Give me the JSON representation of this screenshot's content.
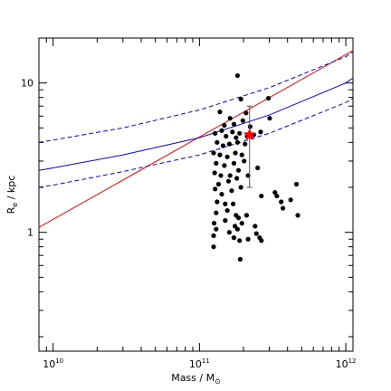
{
  "chart_data": {
    "type": "scatter",
    "xscale": "log",
    "yscale": "log",
    "xlim": [
      8000000000.0,
      1120000000000.0
    ],
    "ylim": [
      0.16,
      20
    ],
    "grid": false,
    "xlabel": {
      "main": "Mass / M",
      "sub": "⊙"
    },
    "ylabel": {
      "main": "R",
      "sub": "e",
      "tail": " / kpc"
    },
    "x_ticks": [
      {
        "value": 10000000000.0,
        "base": "10",
        "exp": "10"
      },
      {
        "value": 100000000000.0,
        "base": "10",
        "exp": "11"
      },
      {
        "value": 1000000000000.0,
        "base": "10",
        "exp": "12"
      }
    ],
    "y_ticks": [
      {
        "value": 1,
        "label": "1"
      },
      {
        "value": 10,
        "label": "10"
      }
    ],
    "points": [
      [
        182000000000.0,
        11.2
      ],
      [
        192000000000.0,
        7.8
      ],
      [
        296000000000.0,
        7.9
      ],
      [
        138000000000.0,
        6.4
      ],
      [
        162000000000.0,
        5.8
      ],
      [
        208000000000.0,
        6.3
      ],
      [
        198000000000.0,
        5.6
      ],
      [
        148000000000.0,
        5.2
      ],
      [
        172000000000.0,
        5.3
      ],
      [
        222000000000.0,
        5.1
      ],
      [
        302000000000.0,
        5.8
      ],
      [
        128000000000.0,
        4.6
      ],
      [
        142000000000.0,
        4.8
      ],
      [
        152000000000.0,
        4.4
      ],
      [
        168000000000.0,
        4.7
      ],
      [
        178000000000.0,
        4.3
      ],
      [
        188000000000.0,
        4.6
      ],
      [
        212000000000.0,
        4.4
      ],
      [
        235000000000.0,
        4.5
      ],
      [
        262000000000.0,
        4.7
      ],
      [
        132000000000.0,
        4.0
      ],
      [
        145000000000.0,
        3.8
      ],
      [
        160000000000.0,
        3.9
      ],
      [
        182000000000.0,
        4.0
      ],
      [
        205000000000.0,
        3.9
      ],
      [
        125000000000.0,
        3.4
      ],
      [
        138000000000.0,
        3.3
      ],
      [
        155000000000.0,
        3.2
      ],
      [
        176000000000.0,
        3.4
      ],
      [
        195000000000.0,
        3.3
      ],
      [
        202000000000.0,
        3.0
      ],
      [
        130000000000.0,
        2.9
      ],
      [
        148000000000.0,
        2.8
      ],
      [
        172000000000.0,
        2.9
      ],
      [
        185000000000.0,
        2.6
      ],
      [
        250000000000.0,
        2.7
      ],
      [
        127000000000.0,
        2.5
      ],
      [
        140000000000.0,
        2.4
      ],
      [
        162000000000.0,
        2.4
      ],
      [
        180000000000.0,
        2.3
      ],
      [
        215000000000.0,
        2.4
      ],
      [
        135000000000.0,
        2.1
      ],
      [
        158000000000.0,
        2.2
      ],
      [
        192000000000.0,
        2.0
      ],
      [
        128000000000.0,
        1.95
      ],
      [
        142000000000.0,
        1.8
      ],
      [
        166000000000.0,
        1.9
      ],
      [
        265000000000.0,
        1.75
      ],
      [
        328000000000.0,
        1.85
      ],
      [
        338000000000.0,
        1.75
      ],
      [
        362000000000.0,
        1.6
      ],
      [
        420000000000.0,
        1.65
      ],
      [
        132000000000.0,
        1.6
      ],
      [
        150000000000.0,
        1.55
      ],
      [
        170000000000.0,
        1.55
      ],
      [
        460000000000.0,
        2.1
      ],
      [
        130000000000.0,
        1.35
      ],
      [
        155000000000.0,
        1.4
      ],
      [
        178000000000.0,
        1.3
      ],
      [
        185000000000.0,
        1.25
      ],
      [
        210000000000.0,
        1.3
      ],
      [
        372000000000.0,
        1.45
      ],
      [
        470000000000.0,
        1.3
      ],
      [
        126000000000.0,
        1.15
      ],
      [
        150000000000.0,
        1.2
      ],
      [
        175000000000.0,
        1.1
      ],
      [
        195000000000.0,
        1.15
      ],
      [
        240000000000.0,
        1.1
      ],
      [
        130000000000.0,
        1.05
      ],
      [
        160000000000.0,
        1.0
      ],
      [
        182000000000.0,
        1.05
      ],
      [
        245000000000.0,
        0.98
      ],
      [
        125000000000.0,
        0.95
      ],
      [
        172000000000.0,
        0.92
      ],
      [
        215000000000.0,
        0.9
      ],
      [
        258000000000.0,
        0.92
      ],
      [
        188000000000.0,
        0.88
      ],
      [
        265000000000.0,
        0.88
      ],
      [
        125000000000.0,
        0.8
      ],
      [
        190000000000.0,
        0.66
      ]
    ],
    "highlight": {
      "x": 220000000000.0,
      "y": 4.5,
      "err_low": 2.0,
      "err_high": 7.0,
      "color": "#ff0000"
    },
    "lines": [
      {
        "color": "#ff0000",
        "dash": "solid",
        "points": [
          [
            8000000000.0,
            1.08
          ],
          [
            1120000000000.0,
            16.5
          ]
        ]
      },
      {
        "color": "#0000ff",
        "dash": "solid",
        "points": [
          [
            8000000000.0,
            2.6
          ],
          [
            10000000000.0,
            2.7
          ],
          [
            30000000000.0,
            3.3
          ],
          [
            100000000000.0,
            4.3
          ],
          [
            300000000000.0,
            6.1
          ],
          [
            1000000000000.0,
            10.0
          ],
          [
            1120000000000.0,
            10.8
          ]
        ]
      },
      {
        "color": "#0000ff",
        "dash": "dashed",
        "points": [
          [
            8000000000.0,
            4.0
          ],
          [
            10000000000.0,
            4.15
          ],
          [
            30000000000.0,
            5.0
          ],
          [
            100000000000.0,
            6.6
          ],
          [
            300000000000.0,
            9.3
          ],
          [
            1000000000000.0,
            15.0
          ],
          [
            1120000000000.0,
            16.2
          ]
        ]
      },
      {
        "color": "#0000ff",
        "dash": "dashed",
        "points": [
          [
            8000000000.0,
            2.0
          ],
          [
            10000000000.0,
            2.07
          ],
          [
            30000000000.0,
            2.55
          ],
          [
            100000000000.0,
            3.3
          ],
          [
            300000000000.0,
            4.6
          ],
          [
            1000000000000.0,
            7.4
          ],
          [
            1120000000000.0,
            7.9
          ]
        ]
      }
    ]
  }
}
